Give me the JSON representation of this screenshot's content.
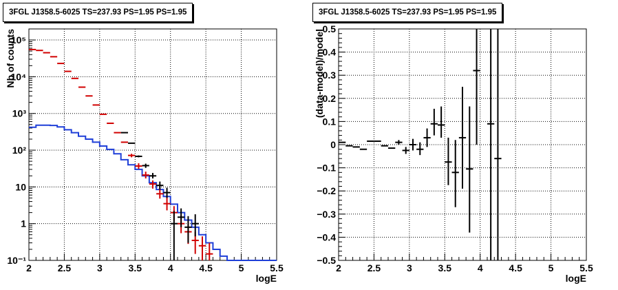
{
  "chart_data": [
    {
      "type": "step+errorbar",
      "title": "3FGL J1358.5-6025 TS=237.93 PS=1.95 PS=1.95",
      "xlabel": "logE",
      "ylabel": "Nb of counts",
      "xlim": [
        2,
        5.5
      ],
      "ylim": [
        0.1,
        200000
      ],
      "yscale": "log",
      "grid": true,
      "xticks": [
        "2",
        "2.5",
        "3",
        "3.5",
        "4",
        "4.5",
        "5",
        "5.5"
      ],
      "yticks": [
        "10⁻¹",
        "1",
        "10",
        "10²",
        "10³",
        "10⁴",
        "10⁵"
      ],
      "bin_edges": [
        2.0,
        2.1,
        2.2,
        2.3,
        2.4,
        2.5,
        2.6,
        2.7,
        2.8,
        2.9,
        3.0,
        3.1,
        3.2,
        3.3,
        3.4,
        3.5,
        3.6,
        3.7,
        3.8,
        3.9,
        4.0,
        4.1,
        4.2,
        4.3,
        4.4,
        4.5,
        4.6,
        4.7,
        4.8,
        4.9,
        5.0,
        5.1,
        5.2,
        5.3,
        5.4,
        5.5
      ],
      "series": [
        {
          "kind": "step",
          "color": "#1f3fd8",
          "values": [
            420,
            480,
            480,
            470,
            430,
            360,
            300,
            240,
            200,
            165,
            130,
            105,
            80,
            55,
            40,
            30,
            20,
            13,
            8.5,
            5.5,
            3.4,
            2.0,
            1.25,
            0.8,
            0.5,
            0.3,
            0.2,
            0.13,
            0.1,
            0.1,
            0.1,
            0.1,
            0.1,
            0.1,
            0.1
          ]
        },
        {
          "kind": "markers",
          "color": "#d10000",
          "x": [
            2.05,
            2.15,
            2.25,
            2.35,
            2.45,
            2.55,
            2.65,
            2.75,
            2.85,
            2.95,
            3.05,
            3.15,
            3.25,
            3.35,
            3.45,
            3.55,
            3.65,
            3.75,
            3.85,
            3.95,
            4.05,
            4.15,
            4.25,
            4.35,
            4.45,
            4.55
          ],
          "y": [
            55000,
            52000,
            45000,
            35000,
            23000,
            14000,
            9000,
            5200,
            3000,
            1700,
            950,
            540,
            300,
            165,
            72,
            37,
            21,
            12,
            6.5,
            3.5,
            2.0,
            1.0,
            0.6,
            0.35,
            0.25,
            0.15
          ],
          "ylo": [
            55000,
            52000,
            45000,
            35000,
            23000,
            14000,
            9000,
            5200,
            3000,
            1700,
            950,
            540,
            300,
            165,
            64,
            31,
            17,
            9,
            4.8,
            2.3,
            1.2,
            0.55,
            0.28,
            0.15,
            0.1,
            0.06
          ],
          "yhi": [
            55000,
            52000,
            45000,
            35000,
            23000,
            14000,
            9000,
            5200,
            3000,
            1700,
            950,
            540,
            300,
            165,
            80,
            44,
            26,
            15,
            9,
            5.2,
            3.0,
            1.7,
            1.15,
            0.6,
            0.45,
            0.3
          ]
        },
        {
          "kind": "markers",
          "color": "#000000",
          "x": [
            3.35,
            3.45,
            3.55,
            3.65,
            3.75,
            3.85,
            3.95,
            4.05,
            4.15,
            4.25,
            4.35
          ],
          "y": [
            300,
            155,
            68,
            38,
            20,
            11,
            7,
            1.0,
            1.5,
            0.8,
            1.0
          ],
          "ylo": [
            300,
            155,
            64,
            33,
            17,
            8.5,
            5.0,
            0.1,
            0.8,
            0.3,
            0.45
          ],
          "yhi": [
            300,
            155,
            72,
            43,
            24,
            14,
            9.5,
            2.2,
            2.6,
            1.6,
            1.8
          ]
        }
      ]
    },
    {
      "type": "errorbar",
      "title": "3FGL J1358.5-6025 TS=237.93 PS=1.95 PS=1.95",
      "xlabel": "logE",
      "ylabel": "(data-model)/model",
      "xlim": [
        2,
        5.5
      ],
      "ylim": [
        -0.5,
        0.5
      ],
      "grid": true,
      "xticks": [
        "2",
        "2.5",
        "3",
        "3.5",
        "4",
        "4.5",
        "5",
        "5.5"
      ],
      "yticks": [
        "−0.5",
        "−0.4",
        "−0.3",
        "−0.2",
        "−0.1",
        "0",
        "0.1",
        "0.2",
        "0.3",
        "0.4",
        "0.5"
      ],
      "series": [
        {
          "color": "#000000",
          "x": [
            2.05,
            2.15,
            2.25,
            2.35,
            2.45,
            2.55,
            2.65,
            2.75,
            2.85,
            2.95,
            3.05,
            3.15,
            3.25,
            3.35,
            3.45,
            3.55,
            3.65,
            3.75,
            3.85,
            3.95,
            4.15,
            4.25
          ],
          "y": [
            0.01,
            -0.005,
            -0.01,
            -0.02,
            0.015,
            0.015,
            -0.005,
            -0.015,
            0.01,
            -0.025,
            0.0,
            -0.02,
            0.03,
            0.09,
            0.085,
            -0.075,
            -0.12,
            0.03,
            -0.105,
            0.32,
            0.09,
            -0.06
          ],
          "ylo": [
            0.01,
            -0.005,
            -0.01,
            -0.02,
            0.015,
            0.015,
            -0.005,
            -0.015,
            0.0,
            -0.04,
            -0.025,
            -0.045,
            -0.01,
            0.04,
            0.03,
            -0.175,
            -0.27,
            -0.19,
            -0.38,
            0.0,
            -0.5,
            -0.5
          ],
          "yhi": [
            0.01,
            -0.005,
            -0.01,
            -0.02,
            0.015,
            0.015,
            -0.005,
            -0.015,
            0.02,
            -0.01,
            0.025,
            0.01,
            0.07,
            0.155,
            0.165,
            0.03,
            0.02,
            0.25,
            0.165,
            0.5,
            0.5,
            0.5
          ]
        }
      ]
    }
  ]
}
